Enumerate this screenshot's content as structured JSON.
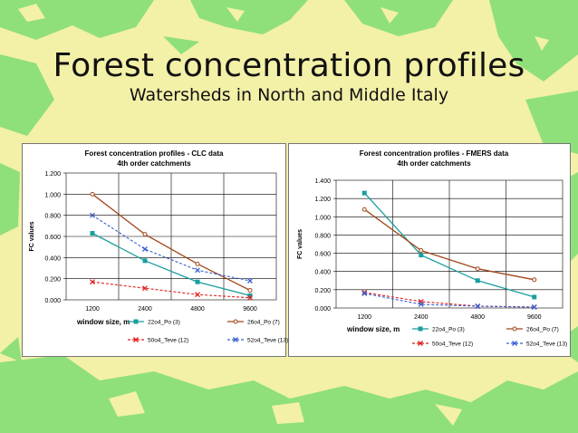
{
  "slide": {
    "title": "Forest concentration profiles",
    "subtitle": "Watersheds in North and Middle Italy"
  },
  "colors": {
    "background": "#f3f0a8",
    "forest": "#8fe07a",
    "series": [
      "#1a9e9e",
      "#a0461a",
      "#e01e1e",
      "#3a5fd0"
    ]
  },
  "chart_data": [
    {
      "type": "line",
      "title": "Forest concentration profiles - CLC data",
      "subtitle": "4th order catchments",
      "xlabel": "window size, m",
      "ylabel": "FC values",
      "categories": [
        "1200",
        "2400",
        "4800",
        "9600"
      ],
      "ylim": [
        0,
        1.2
      ],
      "yticks": [
        "0.000",
        "0.200",
        "0.400",
        "0.600",
        "0.800",
        "1.000",
        "1.200"
      ],
      "grid": true,
      "legend": "bottom",
      "series": [
        {
          "name": "22o4_Po (3)",
          "values": [
            0.63,
            0.37,
            0.17,
            0.04
          ],
          "style": "solid",
          "marker": "square",
          "color": "#1a9e9e"
        },
        {
          "name": "26o4_Po (7)",
          "values": [
            1.0,
            0.62,
            0.34,
            0.09
          ],
          "style": "solid",
          "marker": "circle",
          "color": "#a0461a"
        },
        {
          "name": "50o4_Teve (12)",
          "values": [
            0.17,
            0.11,
            0.05,
            0.02
          ],
          "style": "dashed",
          "marker": "x",
          "color": "#e01e1e"
        },
        {
          "name": "52o4_Teve (13)",
          "values": [
            0.8,
            0.48,
            0.28,
            0.18
          ],
          "style": "dashed",
          "marker": "x",
          "color": "#3a5fd0"
        }
      ]
    },
    {
      "type": "line",
      "title": "Forest concentration profiles - FMERS data",
      "subtitle": "4th order catchments",
      "xlabel": "window size, m",
      "ylabel": "FC values",
      "categories": [
        "1200",
        "2400",
        "4800",
        "9600"
      ],
      "ylim": [
        0,
        1.4
      ],
      "yticks": [
        "0.000",
        "0.200",
        "0.400",
        "0.600",
        "0.800",
        "1.000",
        "1.200",
        "1.400"
      ],
      "grid": true,
      "legend": "bottom",
      "series": [
        {
          "name": "22o4_Po (3)",
          "values": [
            1.26,
            0.58,
            0.3,
            0.12
          ],
          "style": "solid",
          "marker": "square",
          "color": "#1a9e9e"
        },
        {
          "name": "26o4_Po (7)",
          "values": [
            1.08,
            0.63,
            0.43,
            0.31
          ],
          "style": "solid",
          "marker": "circle",
          "color": "#a0461a"
        },
        {
          "name": "50o4_Teve (12)",
          "values": [
            0.17,
            0.07,
            0.02,
            0.01
          ],
          "style": "dashed",
          "marker": "x",
          "color": "#e01e1e"
        },
        {
          "name": "52o4_Teve (13)",
          "values": [
            0.16,
            0.04,
            0.02,
            0.01
          ],
          "style": "dashed",
          "marker": "x",
          "color": "#3a5fd0"
        }
      ]
    }
  ]
}
